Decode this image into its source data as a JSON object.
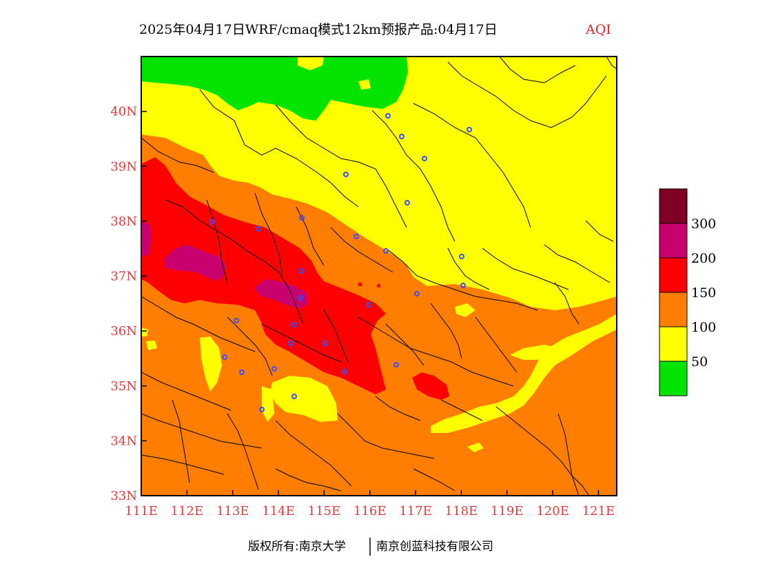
{
  "title": {
    "main": "2025年04月17日WRF/cmaq模式12km预报产品:04月17日",
    "variable": "AQI",
    "variable_color": "#e8222a"
  },
  "axis_color": "#e23b3b",
  "x_axis": {
    "ticks": [
      "111E",
      "112E",
      "113E",
      "114E",
      "115E",
      "116E",
      "117E",
      "118E",
      "119E",
      "120E",
      "121E"
    ],
    "range": [
      111,
      121.4
    ]
  },
  "y_axis": {
    "ticks": [
      "33N",
      "34N",
      "35N",
      "36N",
      "37N",
      "38N",
      "39N",
      "40N"
    ],
    "range": [
      33,
      41
    ]
  },
  "legend": {
    "labels": [
      "300",
      "200",
      "150",
      "100",
      "50"
    ],
    "classes": [
      {
        "range": "0-50",
        "color": "#00e400"
      },
      {
        "range": "50-100",
        "color": "#ffff00"
      },
      {
        "range": "100-150",
        "color": "#ff7e00"
      },
      {
        "range": "150-200",
        "color": "#ff0000"
      },
      {
        "range": "200-300",
        "color": "#c8006e"
      },
      {
        "range": ">300",
        "color": "#7e0023"
      }
    ]
  },
  "city_marker_color": "#3a4cff",
  "footer": {
    "left": "版权所有:南京大学",
    "right": "南京创蓝科技有限公司"
  }
}
